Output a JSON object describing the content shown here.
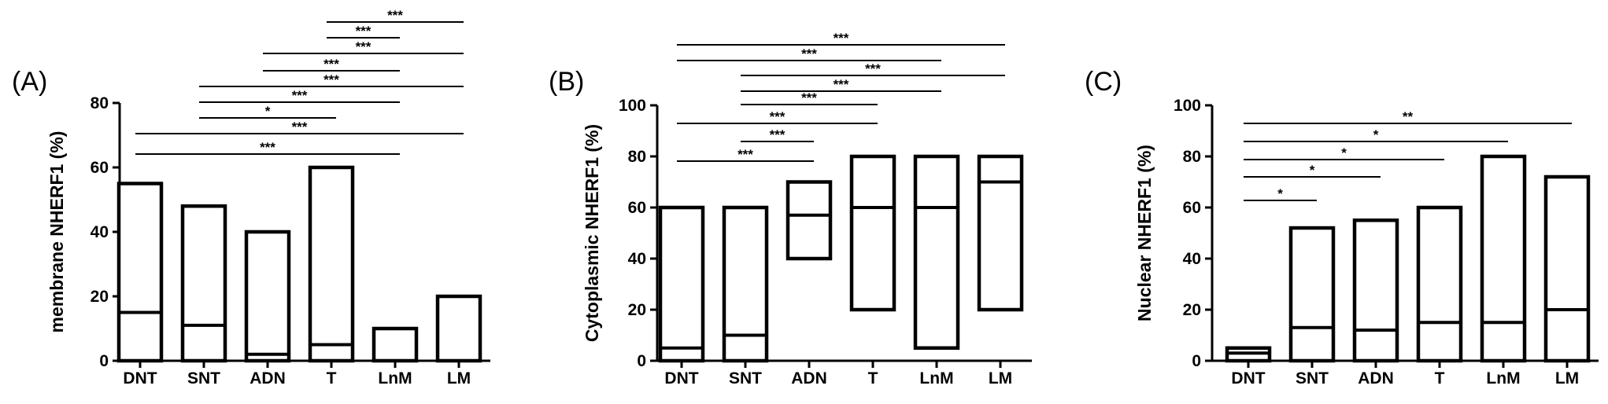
{
  "chart_data": [
    {
      "type": "box",
      "panel": "(A)",
      "ylabel": "membrane NHERF1 (%)",
      "ylim": [
        0,
        80
      ],
      "yticks": [
        0,
        20,
        40,
        60,
        80
      ],
      "categories": [
        "DNT",
        "SNT",
        "ADN",
        "T",
        "LnM",
        "LM"
      ],
      "boxes": [
        {
          "low": 0,
          "median": 15,
          "high": 55
        },
        {
          "low": 0,
          "median": 11,
          "high": 48
        },
        {
          "low": 0,
          "median": 2,
          "high": 40
        },
        {
          "low": 0,
          "median": 5,
          "high": 60
        },
        {
          "low": 0,
          "median": 0,
          "high": 10
        },
        {
          "low": 0,
          "median": 0,
          "high": 20
        }
      ],
      "significance": [
        {
          "from": "DNT",
          "to": "LnM",
          "label": "***"
        },
        {
          "from": "DNT",
          "to": "LM",
          "label": "***"
        },
        {
          "from": "SNT",
          "to": "T",
          "label": "*"
        },
        {
          "from": "SNT",
          "to": "LnM",
          "label": "***"
        },
        {
          "from": "SNT",
          "to": "LM",
          "label": "***"
        },
        {
          "from": "ADN",
          "to": "LnM",
          "label": "***"
        },
        {
          "from": "ADN",
          "to": "LM",
          "label": "***"
        },
        {
          "from": "T",
          "to": "LnM",
          "label": "***"
        },
        {
          "from": "T",
          "to": "LM",
          "label": "***"
        }
      ]
    },
    {
      "type": "box",
      "panel": "(B)",
      "ylabel": "Cytoplasmic NHERF1 (%)",
      "ylim": [
        0,
        100
      ],
      "yticks": [
        0,
        20,
        40,
        60,
        80,
        100
      ],
      "categories": [
        "DNT",
        "SNT",
        "ADN",
        "T",
        "LnM",
        "LM"
      ],
      "boxes": [
        {
          "low": 0,
          "median": 5,
          "high": 60
        },
        {
          "low": 0,
          "median": 10,
          "high": 60
        },
        {
          "low": 40,
          "median": 57,
          "high": 70
        },
        {
          "low": 20,
          "median": 60,
          "high": 80
        },
        {
          "low": 5,
          "median": 60,
          "high": 80
        },
        {
          "low": 20,
          "median": 70,
          "high": 80
        }
      ],
      "significance": [
        {
          "from": "DNT",
          "to": "ADN",
          "label": "***"
        },
        {
          "from": "SNT",
          "to": "ADN",
          "label": "***"
        },
        {
          "from": "DNT",
          "to": "T",
          "label": "***"
        },
        {
          "from": "SNT",
          "to": "T",
          "label": "***"
        },
        {
          "from": "SNT",
          "to": "LnM",
          "label": "***"
        },
        {
          "from": "SNT",
          "to": "LM",
          "label": "***"
        },
        {
          "from": "DNT",
          "to": "LnM",
          "label": "***"
        },
        {
          "from": "DNT",
          "to": "LM",
          "label": "***"
        }
      ]
    },
    {
      "type": "box",
      "panel": "(C)",
      "ylabel": "Nuclear NHERF1 (%)",
      "ylim": [
        0,
        100
      ],
      "yticks": [
        0,
        20,
        40,
        60,
        80,
        100
      ],
      "categories": [
        "DNT",
        "SNT",
        "ADN",
        "T",
        "LnM",
        "LM"
      ],
      "boxes": [
        {
          "low": 0,
          "median": 3,
          "high": 5
        },
        {
          "low": 0,
          "median": 13,
          "high": 52
        },
        {
          "low": 0,
          "median": 12,
          "high": 55
        },
        {
          "low": 0,
          "median": 15,
          "high": 60
        },
        {
          "low": 0,
          "median": 15,
          "high": 80
        },
        {
          "low": 0,
          "median": 20,
          "high": 72
        }
      ],
      "significance": [
        {
          "from": "DNT",
          "to": "SNT",
          "label": "*"
        },
        {
          "from": "DNT",
          "to": "ADN",
          "label": "*"
        },
        {
          "from": "DNT",
          "to": "T",
          "label": "*"
        },
        {
          "from": "DNT",
          "to": "LnM",
          "label": "*"
        },
        {
          "from": "DNT",
          "to": "LM",
          "label": "**"
        }
      ]
    }
  ]
}
